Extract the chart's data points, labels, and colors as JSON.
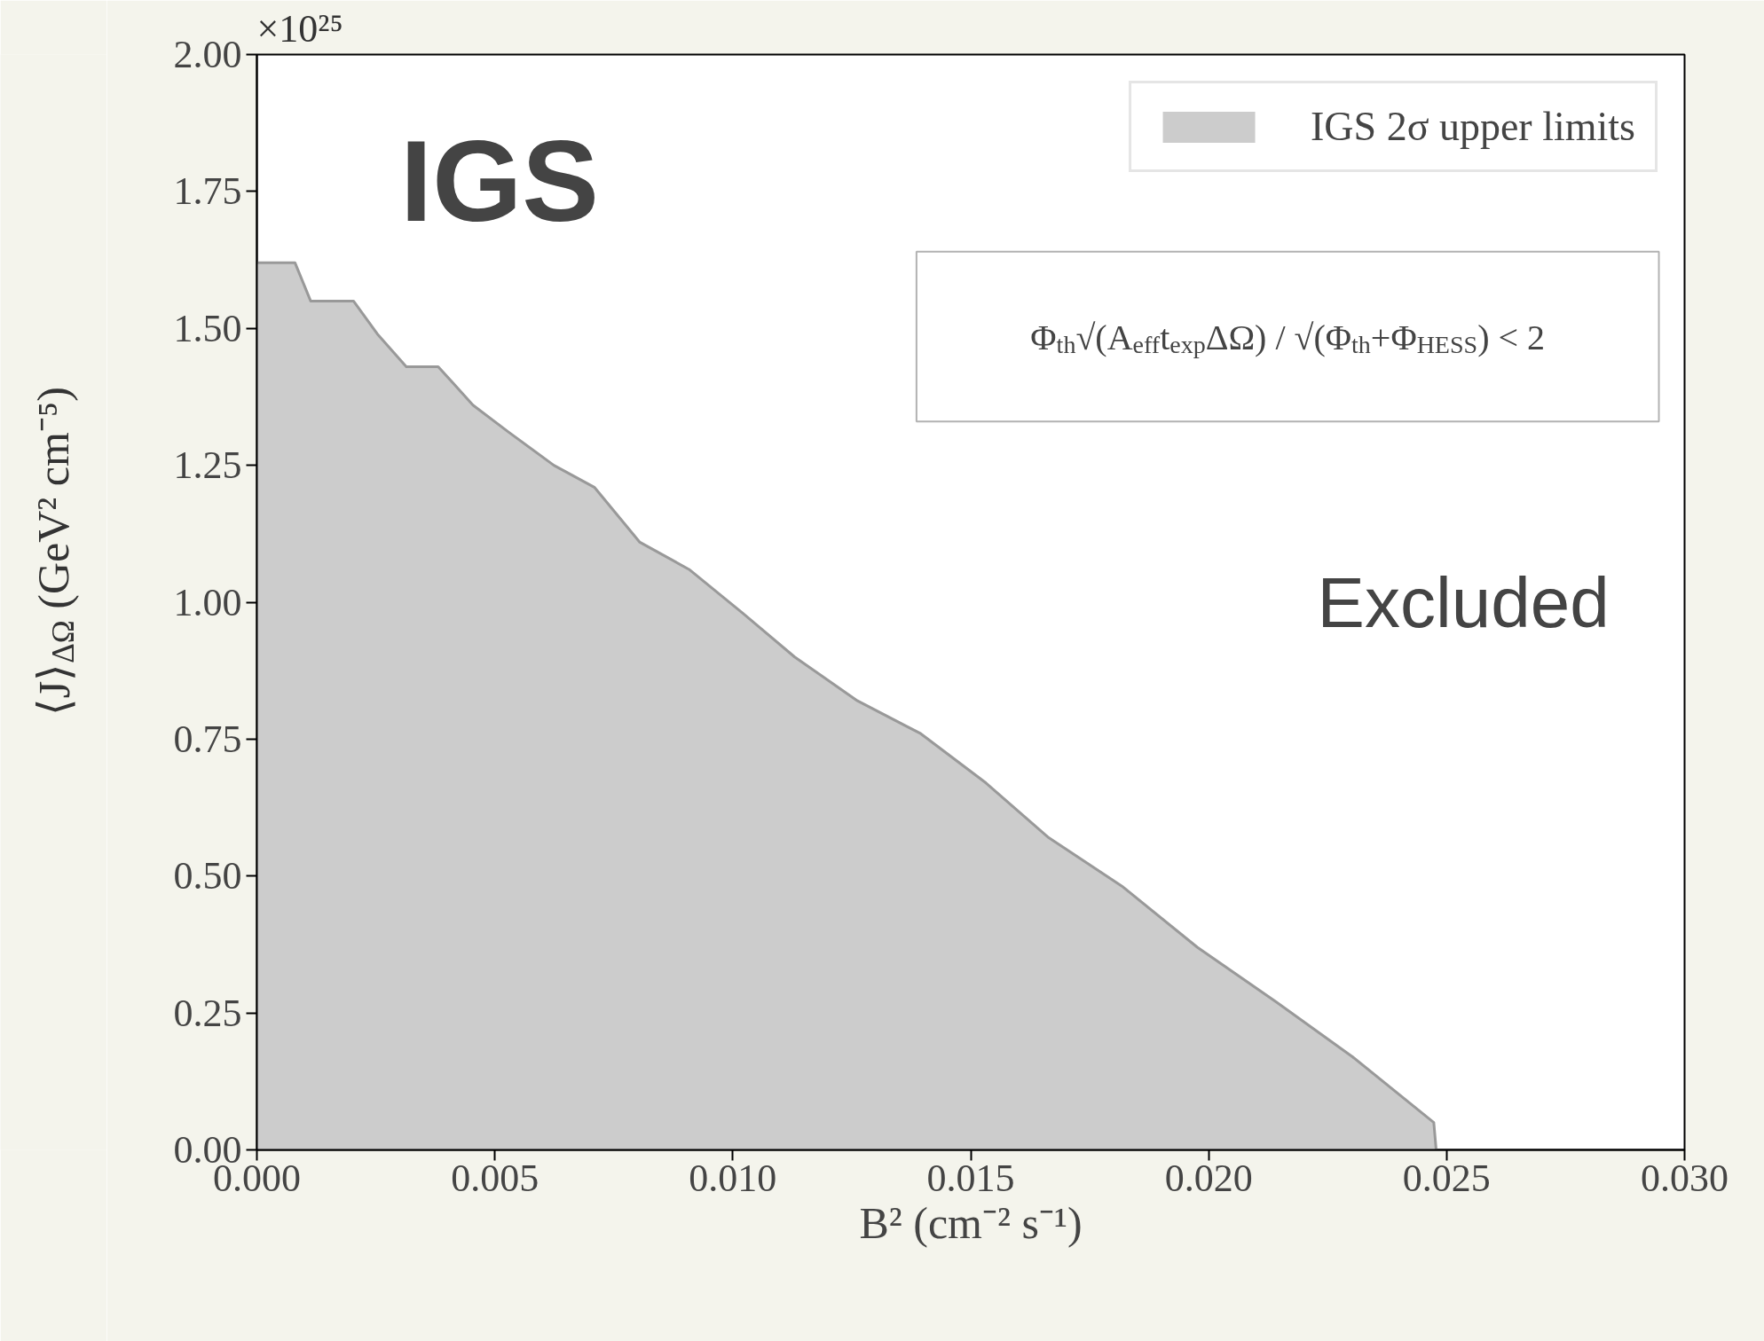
{
  "chart_data": {
    "type": "area",
    "xlabel": "B² (cm⁻² s⁻¹)",
    "ylabel": "⟨J⟩$_{ΔΩ}$ (GeV² cm⁻⁵)",
    "x": [
      0.0,
      0.0008,
      0.00113,
      0.00203,
      0.00253,
      0.00314,
      0.00381,
      0.00454,
      0.0053,
      0.00624,
      0.00709,
      0.00804,
      0.00908,
      0.01021,
      0.0113,
      0.01262,
      0.01395,
      0.01532,
      0.01664,
      0.0182,
      0.01976,
      0.02142,
      0.02302,
      0.02473,
      0.02478
    ],
    "series": [
      {
        "name": "IGS 2σ upper limits",
        "color": "#cccccc",
        "values": [
          1.62,
          1.62,
          1.55,
          1.55,
          1.49,
          1.43,
          1.43,
          1.36,
          1.31,
          1.25,
          1.21,
          1.11,
          1.06,
          0.98,
          0.9,
          0.82,
          0.76,
          0.67,
          0.57,
          0.48,
          0.37,
          0.27,
          0.17,
          0.05,
          0.0
        ]
      }
    ],
    "xlim": [
      0,
      0.03
    ],
    "ylim": [
      0,
      2
    ],
    "xticks": [
      {
        "value": 0,
        "label": "0.000"
      },
      {
        "value": 0.005,
        "label": "0.005"
      },
      {
        "value": 0.01,
        "label": "0.010"
      },
      {
        "value": 0.015,
        "label": "0.015"
      },
      {
        "value": 0.02,
        "label": "0.020"
      },
      {
        "value": 0.025,
        "label": "0.025"
      },
      {
        "value": 0.03,
        "label": "0.030"
      }
    ],
    "yticks": [
      {
        "value": 0,
        "label": "0.00"
      },
      {
        "value": 0.25,
        "label": "0.25"
      },
      {
        "value": 0.5,
        "label": "0.50"
      },
      {
        "value": 0.75,
        "label": "0.75"
      },
      {
        "value": 1,
        "label": "1.00"
      },
      {
        "value": 1.25,
        "label": "1.25"
      },
      {
        "value": 1.5,
        "label": "1.50"
      },
      {
        "value": 1.75,
        "label": "1.75"
      },
      {
        "value": 2,
        "label": "2.00"
      }
    ],
    "annotations": [
      "×10²⁵",
      "IGS",
      "Φ$_{th}$√(A$_{eff}$t$_{exp}$ΔΩ) / √(Φ$_{th}$+Φ$_{HESS}$) < 2",
      "Excluded"
    ],
    "legend": "top right",
    "grid": false
  }
}
